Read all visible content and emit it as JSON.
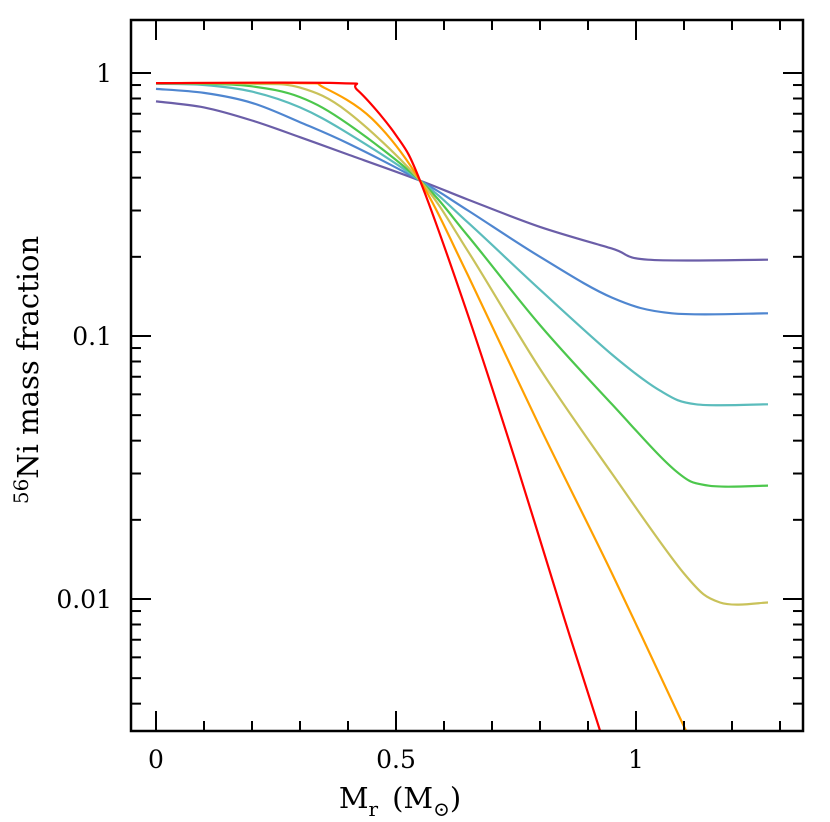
{
  "chart_data": {
    "type": "line",
    "title": "",
    "xlabel": "M_r (M_sun)",
    "xlabel_parts": {
      "main": "M",
      "sub": "r",
      "unit_open": "(M",
      "unit_sub": "⊙",
      "unit_close": ")"
    },
    "ylabel": "56Ni mass fraction",
    "ylabel_parts": {
      "sup": "56",
      "main": "Ni mass fraction"
    },
    "xscale": "linear",
    "yscale": "log",
    "xlim": [
      -0.05,
      1.35
    ],
    "ylim": [
      0.00316,
      1.585
    ],
    "grid": false,
    "legend": null,
    "x_ticks": [
      {
        "value": 0,
        "label": "0"
      },
      {
        "value": 0.5,
        "label": "0.5"
      },
      {
        "value": 1,
        "label": "1"
      }
    ],
    "y_ticks": [
      {
        "value": 1,
        "label": "1"
      },
      {
        "value": 0.1,
        "label": "0.1"
      },
      {
        "value": 0.01,
        "label": "0.01"
      }
    ],
    "series": [
      {
        "name": "curve-1",
        "color": "#6b5ea8",
        "points": [
          [
            0,
            0.78
          ],
          [
            0.1,
            0.74
          ],
          [
            0.2,
            0.66
          ],
          [
            0.3,
            0.57
          ],
          [
            0.4,
            0.49
          ],
          [
            0.55,
            0.39
          ],
          [
            0.65,
            0.33
          ],
          [
            0.8,
            0.26
          ],
          [
            0.95,
            0.215
          ],
          [
            1.025,
            0.195
          ],
          [
            1.275,
            0.195
          ]
        ]
      },
      {
        "name": "curve-2",
        "color": "#4f86d0",
        "points": [
          [
            0,
            0.87
          ],
          [
            0.1,
            0.84
          ],
          [
            0.2,
            0.77
          ],
          [
            0.3,
            0.65
          ],
          [
            0.4,
            0.54
          ],
          [
            0.55,
            0.39
          ],
          [
            0.65,
            0.3
          ],
          [
            0.8,
            0.2
          ],
          [
            0.95,
            0.14
          ],
          [
            1.075,
            0.122
          ],
          [
            1.275,
            0.122
          ]
        ]
      },
      {
        "name": "curve-3",
        "color": "#5bbcbc",
        "points": [
          [
            0,
            0.91
          ],
          [
            0.1,
            0.9
          ],
          [
            0.2,
            0.85
          ],
          [
            0.3,
            0.74
          ],
          [
            0.4,
            0.59
          ],
          [
            0.55,
            0.39
          ],
          [
            0.65,
            0.27
          ],
          [
            0.8,
            0.15
          ],
          [
            0.95,
            0.085
          ],
          [
            1.05,
            0.062
          ],
          [
            1.125,
            0.055
          ],
          [
            1.275,
            0.055
          ]
        ]
      },
      {
        "name": "curve-4",
        "color": "#4cc74c",
        "points": [
          [
            0,
            0.915
          ],
          [
            0.1,
            0.91
          ],
          [
            0.2,
            0.89
          ],
          [
            0.3,
            0.81
          ],
          [
            0.4,
            0.64
          ],
          [
            0.55,
            0.39
          ],
          [
            0.65,
            0.24
          ],
          [
            0.8,
            0.11
          ],
          [
            0.95,
            0.055
          ],
          [
            1.08,
            0.031
          ],
          [
            1.15,
            0.027
          ],
          [
            1.275,
            0.027
          ]
        ]
      },
      {
        "name": "curve-5",
        "color": "#c9c25a",
        "points": [
          [
            0,
            0.915
          ],
          [
            0.2,
            0.91
          ],
          [
            0.3,
            0.88
          ],
          [
            0.4,
            0.71
          ],
          [
            0.55,
            0.39
          ],
          [
            0.65,
            0.21
          ],
          [
            0.8,
            0.075
          ],
          [
            0.95,
            0.03
          ],
          [
            1.1,
            0.0125
          ],
          [
            1.175,
            0.0097
          ],
          [
            1.275,
            0.0097
          ]
        ]
      },
      {
        "name": "curve-6",
        "color": "#ffa000",
        "points": [
          [
            0,
            0.915
          ],
          [
            0.3,
            0.915
          ],
          [
            0.35,
            0.88
          ],
          [
            0.45,
            0.67
          ],
          [
            0.55,
            0.39
          ],
          [
            0.65,
            0.17
          ],
          [
            0.8,
            0.045
          ],
          [
            0.95,
            0.0125
          ],
          [
            1.104,
            0.00316
          ]
        ]
      },
      {
        "name": "curve-7",
        "color": "#ff0000",
        "points": [
          [
            0,
            0.915
          ],
          [
            0.38,
            0.915
          ],
          [
            0.42,
            0.86
          ],
          [
            0.5,
            0.58
          ],
          [
            0.55,
            0.39
          ],
          [
            0.65,
            0.12
          ],
          [
            0.75,
            0.033
          ],
          [
            0.85,
            0.0085
          ],
          [
            0.925,
            0.00316
          ]
        ]
      }
    ]
  }
}
